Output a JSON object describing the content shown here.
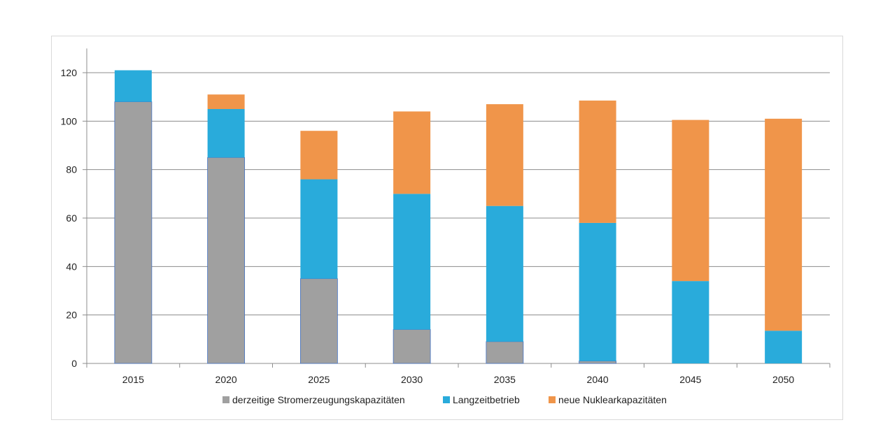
{
  "chart_data": {
    "type": "bar",
    "stacked": true,
    "categories": [
      "2015",
      "2020",
      "2025",
      "2030",
      "2035",
      "2040",
      "2045",
      "2050"
    ],
    "series": [
      {
        "name": "derzeitige Stromerzeugungskapazitäten",
        "color": "#a0a0a0",
        "values": [
          108,
          85,
          35,
          14,
          9,
          1,
          0,
          0
        ]
      },
      {
        "name": "Langzeitbetrieb",
        "color": "#29abdb",
        "values": [
          13,
          20,
          41,
          56,
          56,
          57,
          34,
          13.5
        ]
      },
      {
        "name": "neue Nuklearkapazitäten",
        "color": "#f0954a",
        "values": [
          0,
          6,
          20,
          34,
          42,
          50.5,
          66.5,
          87.5
        ]
      }
    ],
    "yticks": [
      "0",
      "20",
      "40",
      "60",
      "80",
      "100",
      "120"
    ],
    "ylim": [
      0,
      130
    ],
    "grid": true,
    "legend_position": "bottom"
  }
}
